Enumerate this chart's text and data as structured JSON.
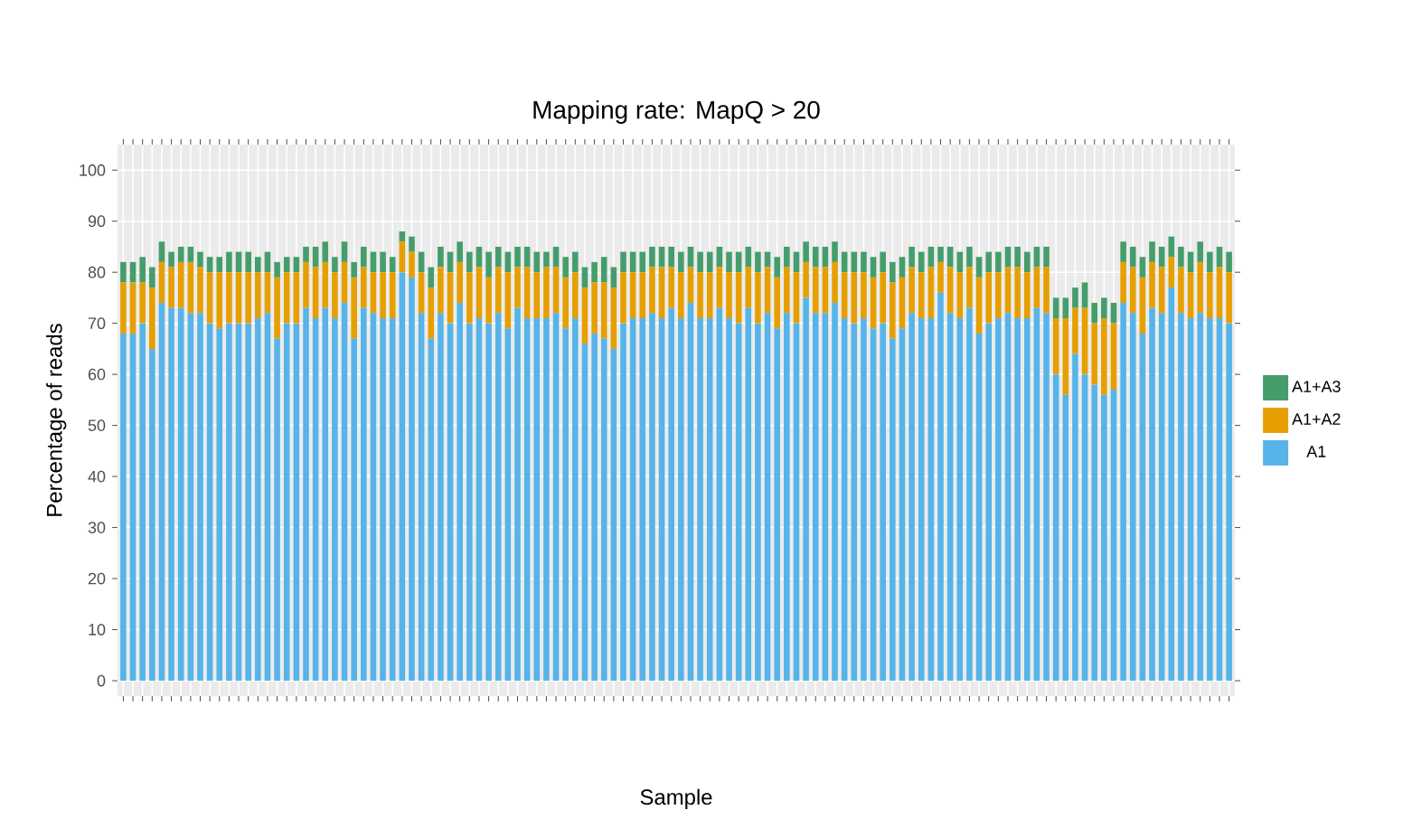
{
  "chart_data": {
    "type": "bar",
    "stacked": true,
    "title": "Mapping rate: MapQ > 20",
    "xlabel": "Sample",
    "ylabel": "Percentage of reads",
    "categories": [
      null,
      null,
      null,
      null,
      null,
      null,
      null,
      null,
      null,
      null,
      null,
      null,
      null,
      null,
      null,
      null,
      null,
      null,
      null,
      null,
      null,
      null,
      null,
      null,
      null,
      null,
      null,
      null,
      null,
      null,
      null,
      null,
      null,
      null,
      null,
      null,
      null,
      null,
      null,
      null,
      null,
      null,
      null,
      null,
      null,
      null,
      null,
      null,
      null,
      null,
      null,
      null,
      null,
      null,
      null,
      null,
      null,
      null,
      null,
      null,
      null,
      null,
      null,
      null,
      null,
      null,
      null,
      null,
      null,
      null,
      null,
      null,
      null,
      null,
      null,
      null,
      null,
      null,
      null,
      null,
      null,
      null,
      null,
      null,
      null,
      null,
      null,
      null,
      null,
      null,
      null,
      null,
      null,
      null,
      null,
      null,
      null,
      null,
      null,
      null,
      null,
      null,
      null,
      null,
      null,
      null,
      null,
      null,
      null,
      null,
      null,
      null,
      null,
      null,
      null,
      null
    ],
    "series": [
      {
        "name": "A1",
        "color": "#56b4e9",
        "values": [
          68,
          68,
          70,
          65,
          74,
          73,
          73,
          72,
          72,
          70,
          69,
          70,
          70,
          70,
          71,
          72,
          67,
          70,
          70,
          73,
          71,
          73,
          71,
          74,
          67,
          73,
          72,
          71,
          71,
          80,
          79,
          72,
          67,
          72,
          70,
          74,
          70,
          71,
          70,
          72,
          69,
          73,
          71,
          71,
          71,
          72,
          69,
          71,
          66,
          68,
          67,
          65,
          70,
          71,
          71,
          72,
          71,
          73,
          71,
          74,
          71,
          71,
          73,
          71,
          70,
          73,
          70,
          72,
          69,
          72,
          70,
          75,
          72,
          72,
          74,
          71,
          70,
          71,
          69,
          70,
          67,
          69,
          72,
          71,
          71,
          76,
          72,
          71,
          73,
          68,
          70,
          71,
          72,
          71,
          71,
          73,
          72,
          60,
          56,
          64,
          60,
          58,
          56,
          57,
          74,
          72,
          68,
          73,
          72,
          77,
          72,
          71,
          72,
          71,
          71,
          70
        ]
      },
      {
        "name": "A1+A2",
        "color": "#e69f00",
        "values": [
          10,
          10,
          8,
          12,
          8,
          8,
          9,
          10,
          9,
          10,
          11,
          10,
          10,
          10,
          9,
          8,
          12,
          10,
          10,
          9,
          10,
          9,
          9,
          8,
          12,
          8,
          8,
          9,
          9,
          6,
          5,
          8,
          10,
          9,
          10,
          8,
          10,
          10,
          9,
          9,
          11,
          8,
          10,
          9,
          10,
          9,
          10,
          9,
          11,
          10,
          11,
          12,
          10,
          9,
          9,
          9,
          10,
          8,
          9,
          7,
          9,
          9,
          8,
          9,
          10,
          8,
          10,
          9,
          10,
          9,
          10,
          7,
          9,
          9,
          8,
          9,
          10,
          9,
          10,
          10,
          11,
          10,
          9,
          9,
          10,
          6,
          9,
          9,
          8,
          11,
          10,
          9,
          9,
          10,
          9,
          8,
          9,
          11,
          15,
          9,
          13,
          12,
          15,
          13,
          8,
          9,
          11,
          9,
          9,
          6,
          9,
          9,
          10,
          9,
          10,
          10
        ]
      },
      {
        "name": "A1+A3",
        "color": "#469d6c",
        "values": [
          4,
          4,
          5,
          4,
          4,
          3,
          3,
          3,
          3,
          3,
          3,
          4,
          4,
          4,
          3,
          4,
          3,
          3,
          3,
          3,
          4,
          4,
          3,
          4,
          3,
          4,
          4,
          4,
          3,
          2,
          3,
          4,
          4,
          4,
          4,
          4,
          4,
          4,
          5,
          4,
          4,
          4,
          4,
          4,
          3,
          4,
          4,
          4,
          4,
          4,
          5,
          4,
          4,
          4,
          4,
          4,
          4,
          4,
          4,
          4,
          4,
          4,
          4,
          4,
          4,
          4,
          4,
          3,
          4,
          4,
          4,
          4,
          4,
          4,
          4,
          4,
          4,
          4,
          4,
          4,
          4,
          4,
          4,
          4,
          4,
          3,
          4,
          4,
          4,
          4,
          4,
          4,
          4,
          4,
          4,
          4,
          4,
          4,
          4,
          4,
          5,
          4,
          4,
          4,
          4,
          4,
          4,
          4,
          4,
          4,
          4,
          4,
          4,
          4,
          4,
          4
        ]
      }
    ],
    "ylim": [
      -3,
      105
    ],
    "yticks": [
      0,
      10,
      20,
      30,
      40,
      50,
      60,
      70,
      80,
      90,
      100
    ],
    "grid": true,
    "legend": "right"
  }
}
